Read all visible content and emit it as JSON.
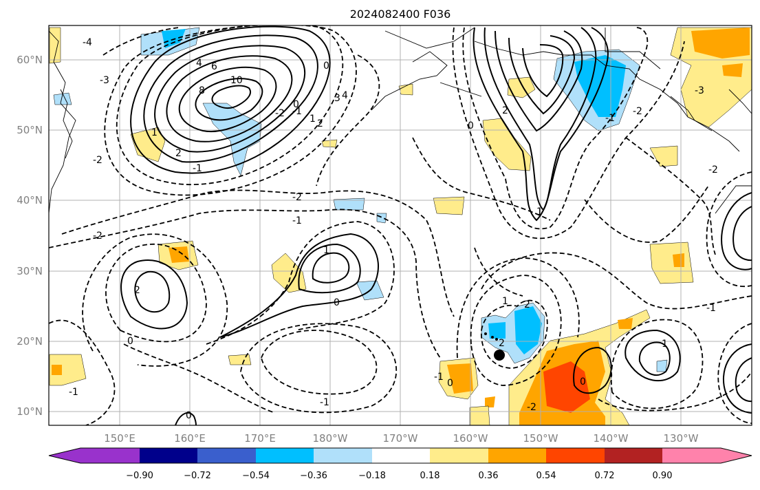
{
  "title": "2024082400 F036",
  "lat_labels": [
    "60°N",
    "50°N",
    "40°N",
    "30°N",
    "20°N",
    "10°N"
  ],
  "lon_labels": [
    "150°E",
    "160°E",
    "170°E",
    "180°W",
    "170°W",
    "160°W",
    "150°W",
    "140°W",
    "130°W"
  ],
  "contour_labels": [
    "-4",
    "-3",
    "-2",
    "-1",
    "0",
    "1",
    "2",
    "4",
    "6",
    "8",
    "10",
    "-2",
    "-1",
    "0",
    "1",
    "2",
    "3",
    "4",
    "-3",
    "-2",
    "-1",
    "0",
    "1",
    "2",
    "-2",
    "-1",
    "0",
    "-2",
    "-1",
    "0",
    "2",
    "1",
    "-1",
    "0",
    "1",
    "2",
    "-1",
    "0",
    "2",
    "-2",
    "0",
    "1",
    "-1",
    "-2"
  ],
  "colorbar": {
    "ticks": [
      "−0.90",
      "−0.72",
      "−0.54",
      "−0.36",
      "−0.18",
      "0.18",
      "0.36",
      "0.54",
      "0.72",
      "0.90"
    ],
    "colors": [
      "#9932cc",
      "#00008b",
      "#3a5fcd",
      "#00bfff",
      "#b0e0fa",
      "#ffffff",
      "#ffec8b",
      "#ffa500",
      "#ff4500",
      "#b22222",
      "#ff82ab"
    ]
  },
  "colors": {
    "light_blue": "#b0e0fa",
    "blue": "#00bfff",
    "yellow": "#ffec8b",
    "orange": "#ffa500",
    "red": "#ff4500"
  },
  "marker": "storm-position-dot"
}
